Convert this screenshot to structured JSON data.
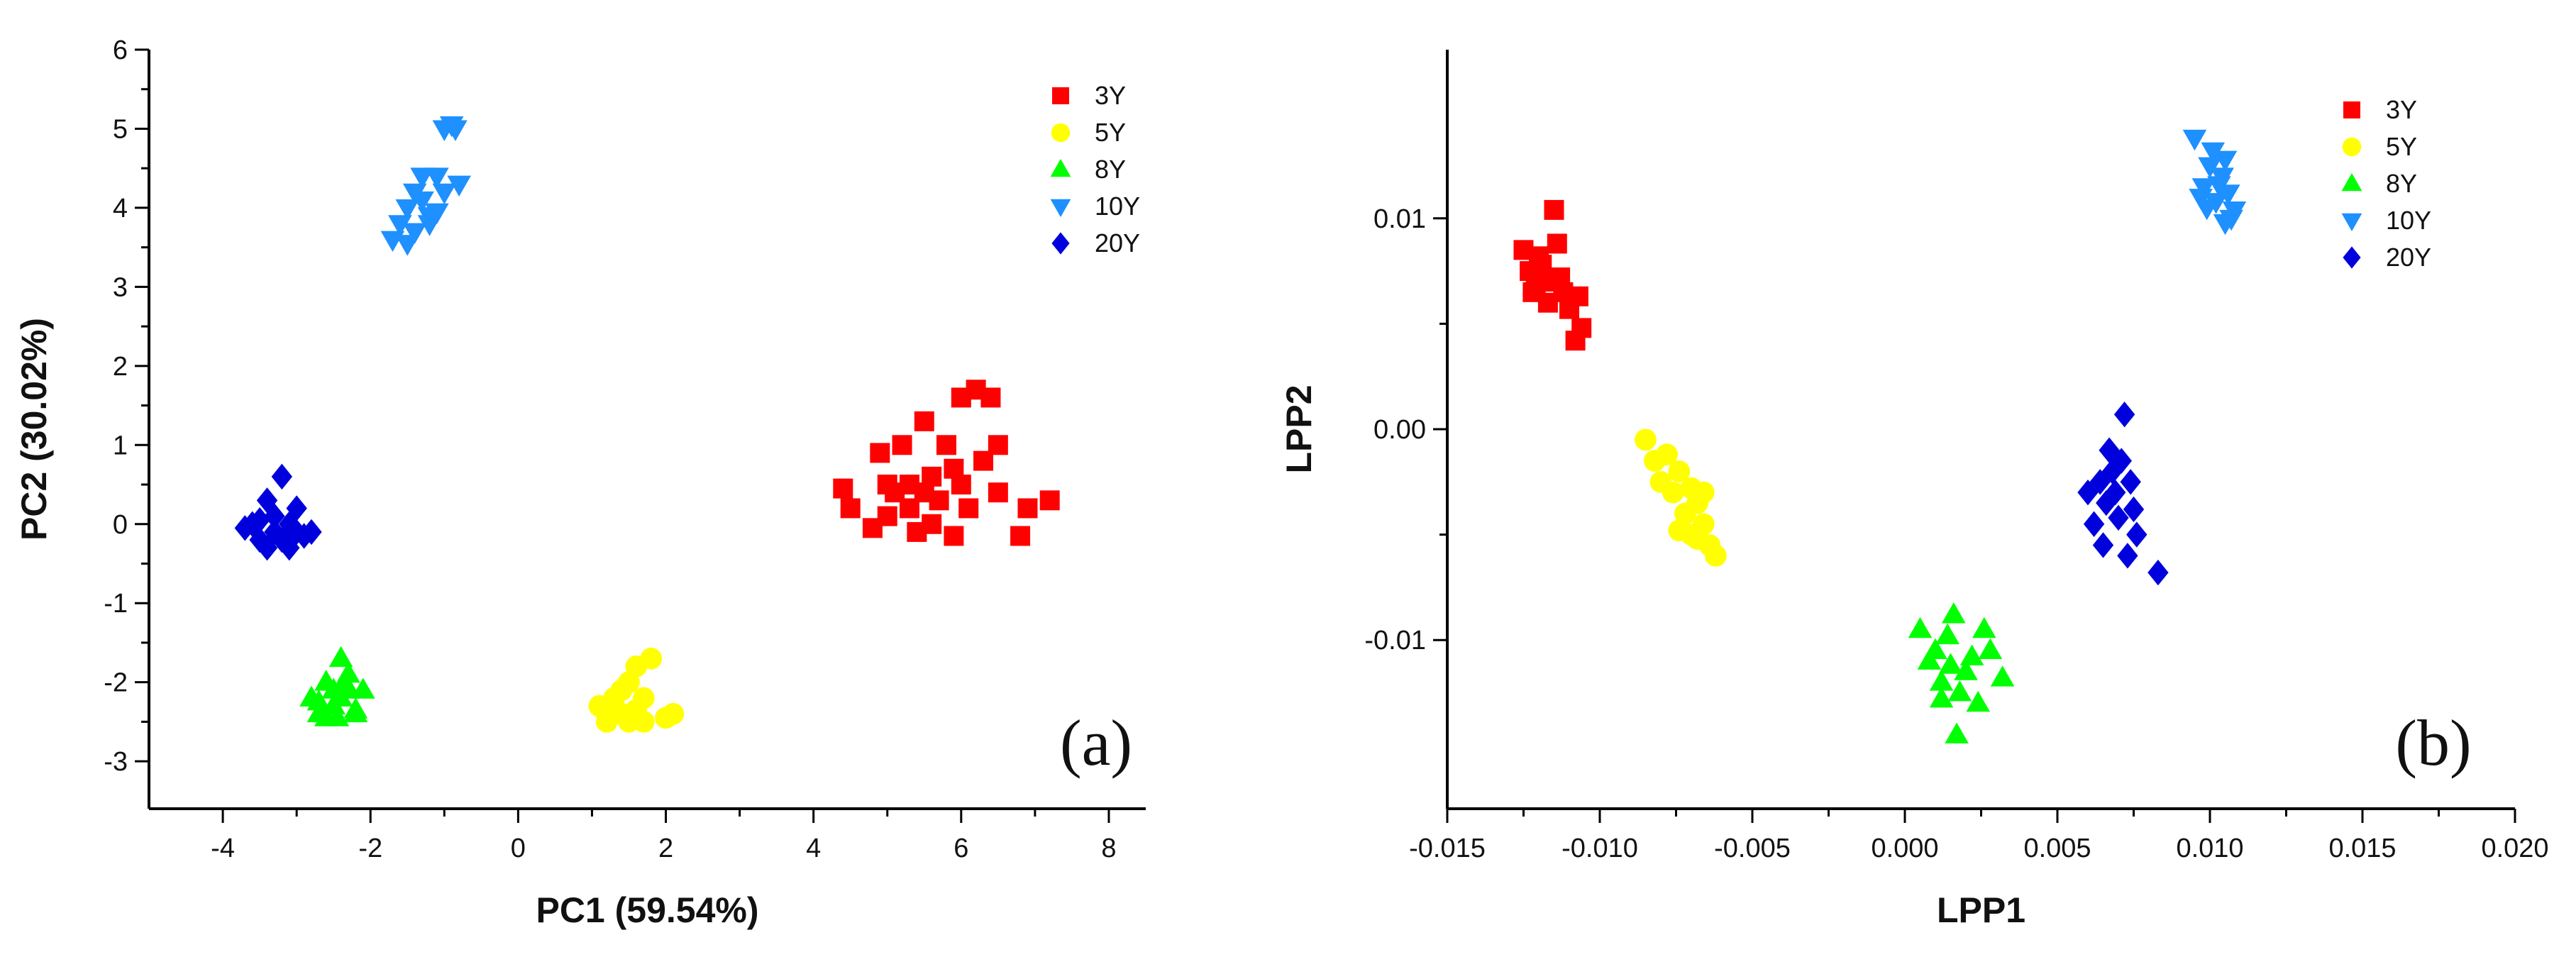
{
  "chart_data": [
    {
      "type": "scatter",
      "panel_label": "(a)",
      "xlabel": "PC1 (59.54%)",
      "ylabel": "PC2 (30.02%)",
      "xlim": [
        -5,
        8.5
      ],
      "ylim": [
        -3.6,
        6
      ],
      "xticks": [
        -4,
        -2,
        0,
        2,
        4,
        6,
        8
      ],
      "yticks": [
        -3,
        -2,
        -1,
        0,
        1,
        2,
        3,
        4,
        5,
        6
      ],
      "ytick_labels": [
        "-3",
        "-2",
        "-1",
        "0",
        "1",
        "2",
        "3",
        "4",
        "5",
        "6"
      ],
      "legend_position": "top-right",
      "series": [
        {
          "name": "3Y",
          "color": "#ff0000",
          "marker": "square",
          "points": [
            [
              4.4,
              0.45
            ],
            [
              4.5,
              0.2
            ],
            [
              4.8,
              -0.05
            ],
            [
              4.9,
              0.9
            ],
            [
              5.0,
              0.1
            ],
            [
              5.1,
              0.4
            ],
            [
              5.2,
              1.0
            ],
            [
              5.3,
              0.2
            ],
            [
              5.4,
              -0.1
            ],
            [
              5.5,
              1.3
            ],
            [
              5.6,
              0.6
            ],
            [
              5.7,
              0.3
            ],
            [
              5.8,
              1.0
            ],
            [
              5.9,
              0.7
            ],
            [
              6.0,
              0.5
            ],
            [
              6.1,
              0.2
            ],
            [
              6.2,
              1.7
            ],
            [
              6.3,
              0.8
            ],
            [
              6.4,
              1.6
            ],
            [
              6.5,
              1.0
            ],
            [
              6.0,
              1.6
            ],
            [
              5.3,
              0.5
            ],
            [
              5.6,
              0.0
            ],
            [
              5.9,
              -0.15
            ],
            [
              6.5,
              0.4
            ],
            [
              6.9,
              0.2
            ],
            [
              7.2,
              0.3
            ],
            [
              6.8,
              -0.15
            ],
            [
              5.0,
              0.5
            ],
            [
              5.5,
              0.4
            ]
          ]
        },
        {
          "name": "5Y",
          "color": "#ffff00",
          "marker": "circle",
          "points": [
            [
              1.1,
              -2.3
            ],
            [
              1.2,
              -2.5
            ],
            [
              1.3,
              -2.2
            ],
            [
              1.4,
              -2.4
            ],
            [
              1.5,
              -2.0
            ],
            [
              1.6,
              -1.8
            ],
            [
              1.7,
              -2.2
            ],
            [
              1.5,
              -2.5
            ],
            [
              1.3,
              -2.35
            ],
            [
              1.8,
              -1.7
            ],
            [
              2.0,
              -2.45
            ],
            [
              2.1,
              -2.4
            ],
            [
              1.6,
              -2.35
            ],
            [
              1.4,
              -2.1
            ],
            [
              1.2,
              -2.4
            ],
            [
              1.7,
              -2.5
            ]
          ]
        },
        {
          "name": "8Y",
          "color": "#00ff00",
          "marker": "triangle-up",
          "points": [
            [
              -2.8,
              -2.2
            ],
            [
              -2.7,
              -2.4
            ],
            [
              -2.6,
              -2.0
            ],
            [
              -2.5,
              -2.3
            ],
            [
              -2.4,
              -1.7
            ],
            [
              -2.3,
              -2.1
            ],
            [
              -2.2,
              -2.35
            ],
            [
              -2.1,
              -2.1
            ],
            [
              -2.6,
              -2.45
            ],
            [
              -2.4,
              -2.2
            ],
            [
              -2.3,
              -1.9
            ],
            [
              -2.5,
              -2.1
            ],
            [
              -2.7,
              -2.25
            ],
            [
              -2.2,
              -2.4
            ],
            [
              -2.45,
              -2.45
            ],
            [
              -2.35,
              -2.0
            ]
          ]
        },
        {
          "name": "10Y",
          "color": "#1e90ff",
          "marker": "triangle-down",
          "points": [
            [
              -1.7,
              3.6
            ],
            [
              -1.6,
              3.8
            ],
            [
              -1.5,
              4.0
            ],
            [
              -1.4,
              3.7
            ],
            [
              -1.3,
              4.1
            ],
            [
              -1.2,
              3.9
            ],
            [
              -1.1,
              4.4
            ],
            [
              -1.3,
              4.4
            ],
            [
              -1.0,
              5.0
            ],
            [
              -0.9,
              5.05
            ],
            [
              -0.8,
              4.3
            ],
            [
              -1.0,
              4.2
            ],
            [
              -1.4,
              4.2
            ],
            [
              -1.5,
              3.55
            ],
            [
              -1.2,
              3.8
            ],
            [
              -1.1,
              3.95
            ],
            [
              -0.85,
              5.0
            ]
          ]
        },
        {
          "name": "20Y",
          "color": "#0000dd",
          "marker": "diamond",
          "points": [
            [
              -3.7,
              -0.05
            ],
            [
              -3.6,
              0.0
            ],
            [
              -3.5,
              -0.2
            ],
            [
              -3.4,
              0.3
            ],
            [
              -3.3,
              0.1
            ],
            [
              -3.2,
              0.6
            ],
            [
              -3.1,
              -0.3
            ],
            [
              -3.0,
              -0.1
            ],
            [
              -2.8,
              -0.1
            ],
            [
              -3.4,
              -0.3
            ],
            [
              -3.2,
              -0.2
            ],
            [
              -3.0,
              0.2
            ],
            [
              -3.5,
              0.05
            ],
            [
              -3.3,
              -0.1
            ],
            [
              -3.1,
              0.0
            ],
            [
              -2.9,
              -0.15
            ]
          ]
        }
      ]
    },
    {
      "type": "scatter",
      "panel_label": "(b)",
      "xlabel": "LPP1",
      "ylabel": "LPP2",
      "xlim": [
        -0.015,
        0.02
      ],
      "ylim": [
        -0.018,
        0.018
      ],
      "xticks": [
        -0.015,
        -0.01,
        -0.005,
        0,
        0.005,
        0.01,
        0.015,
        0.02
      ],
      "xtick_labels": [
        "-0.015",
        "-0.010",
        "-0.005",
        "0.000",
        "0.005",
        "0.010",
        "0.015",
        "0.020"
      ],
      "yticks": [
        -0.01,
        0,
        0.01
      ],
      "ytick_labels": [
        "-0.01",
        "0.00",
        "0.01"
      ],
      "legend_position": "top-right",
      "series": [
        {
          "name": "3Y",
          "color": "#ff0000",
          "marker": "square",
          "points": [
            [
              -0.0125,
              0.0085
            ],
            [
              -0.0123,
              0.0075
            ],
            [
              -0.0122,
              0.0065
            ],
            [
              -0.012,
              0.0082
            ],
            [
              -0.0118,
              0.007
            ],
            [
              -0.0117,
              0.006
            ],
            [
              -0.0115,
              0.0104
            ],
            [
              -0.0114,
              0.0088
            ],
            [
              -0.0113,
              0.0072
            ],
            [
              -0.0112,
              0.0065
            ],
            [
              -0.011,
              0.0057
            ],
            [
              -0.0108,
              0.0042
            ],
            [
              -0.0106,
              0.0048
            ],
            [
              -0.0107,
              0.0063
            ],
            [
              -0.0119,
              0.0078
            ],
            [
              -0.0121,
              0.0068
            ]
          ]
        },
        {
          "name": "5Y",
          "color": "#ffff00",
          "marker": "circle",
          "points": [
            [
              -0.0085,
              -0.0005
            ],
            [
              -0.0082,
              -0.0015
            ],
            [
              -0.008,
              -0.0025
            ],
            [
              -0.0078,
              -0.0012
            ],
            [
              -0.0076,
              -0.003
            ],
            [
              -0.0074,
              -0.002
            ],
            [
              -0.0072,
              -0.004
            ],
            [
              -0.007,
              -0.005
            ],
            [
              -0.0068,
              -0.0035
            ],
            [
              -0.0066,
              -0.003
            ],
            [
              -0.0064,
              -0.0055
            ],
            [
              -0.0062,
              -0.006
            ],
            [
              -0.0066,
              -0.0045
            ],
            [
              -0.007,
              -0.0028
            ],
            [
              -0.0074,
              -0.0048
            ],
            [
              -0.0068,
              -0.0052
            ]
          ]
        },
        {
          "name": "8Y",
          "color": "#00ff00",
          "marker": "triangle-up",
          "points": [
            [
              0.0005,
              -0.0095
            ],
            [
              0.0008,
              -0.011
            ],
            [
              0.001,
              -0.0105
            ],
            [
              0.0012,
              -0.012
            ],
            [
              0.0014,
              -0.0098
            ],
            [
              0.0016,
              -0.0088
            ],
            [
              0.0018,
              -0.0125
            ],
            [
              0.002,
              -0.0115
            ],
            [
              0.0022,
              -0.0108
            ],
            [
              0.0024,
              -0.013
            ],
            [
              0.0026,
              -0.0095
            ],
            [
              0.0032,
              -0.0118
            ],
            [
              0.0017,
              -0.0145
            ],
            [
              0.0015,
              -0.0112
            ],
            [
              0.0012,
              -0.0128
            ],
            [
              0.0028,
              -0.0105
            ]
          ]
        },
        {
          "name": "10Y",
          "color": "#1e90ff",
          "marker": "triangle-down",
          "points": [
            [
              0.0095,
              0.0138
            ],
            [
              0.0098,
              0.0115
            ],
            [
              0.01,
              0.0125
            ],
            [
              0.0102,
              0.0108
            ],
            [
              0.0104,
              0.012
            ],
            [
              0.0105,
              0.0098
            ],
            [
              0.0106,
              0.0112
            ],
            [
              0.0108,
              0.0104
            ],
            [
              0.0101,
              0.0132
            ],
            [
              0.0099,
              0.0105
            ],
            [
              0.0107,
              0.01
            ],
            [
              0.0103,
              0.0116
            ],
            [
              0.0097,
              0.011
            ],
            [
              0.0105,
              0.0128
            ]
          ]
        },
        {
          "name": "20Y",
          "color": "#0000dd",
          "marker": "diamond",
          "points": [
            [
              0.006,
              -0.003
            ],
            [
              0.0062,
              -0.0045
            ],
            [
              0.0064,
              -0.0025
            ],
            [
              0.0065,
              -0.0055
            ],
            [
              0.0066,
              -0.0035
            ],
            [
              0.0068,
              -0.002
            ],
            [
              0.007,
              -0.0042
            ],
            [
              0.0072,
              0.0007
            ],
            [
              0.0071,
              -0.0015
            ],
            [
              0.0073,
              -0.006
            ],
            [
              0.0075,
              -0.0038
            ],
            [
              0.0076,
              -0.005
            ],
            [
              0.0083,
              -0.0068
            ],
            [
              0.0069,
              -0.003
            ],
            [
              0.0067,
              -0.001
            ],
            [
              0.0074,
              -0.0025
            ]
          ]
        }
      ]
    }
  ]
}
